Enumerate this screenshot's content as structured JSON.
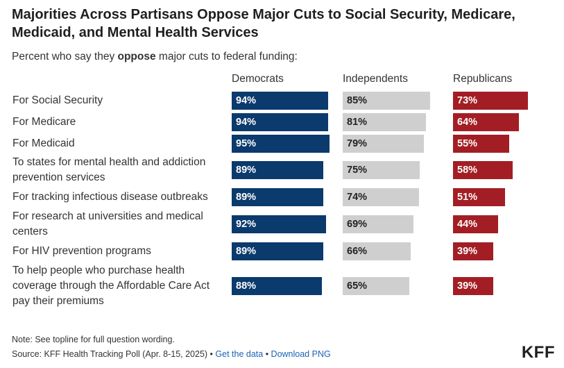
{
  "title": "Majorities Across Partisans Oppose Major Cuts to Social Security, Medicare, Medicaid, and Mental Health Services",
  "subtitle_pre": "Percent who say they ",
  "subtitle_bold": "oppose",
  "subtitle_post": " major cuts to federal funding:",
  "note": "Note: See topline for full question wording.",
  "source_text": "Source: KFF Health Tracking Poll (Apr. 8-15, 2025) • ",
  "get_data_label": "Get the data",
  "separator": " • ",
  "download_label": "Download PNG",
  "logo": "KFF",
  "chart_data": {
    "type": "bar",
    "orientation": "horizontal",
    "categories": [
      "For Social Security",
      "For Medicare",
      "For Medicaid",
      "To states for mental health and addiction prevention services",
      "For tracking infectious disease outbreaks",
      "For research at universities and medical centers",
      "For HIV prevention programs",
      "To help people who purchase health coverage through the Affordable Care Act pay their premiums"
    ],
    "series": [
      {
        "name": "Democrats",
        "color": "#0b3a6d",
        "values": [
          94,
          94,
          95,
          89,
          89,
          92,
          89,
          88
        ]
      },
      {
        "name": "Independents",
        "color": "#cfcfcf",
        "values": [
          85,
          81,
          79,
          75,
          74,
          69,
          66,
          65
        ]
      },
      {
        "name": "Republicans",
        "color": "#a31e24",
        "values": [
          73,
          64,
          55,
          58,
          51,
          44,
          39,
          39
        ]
      }
    ],
    "value_suffix": "%"
  }
}
